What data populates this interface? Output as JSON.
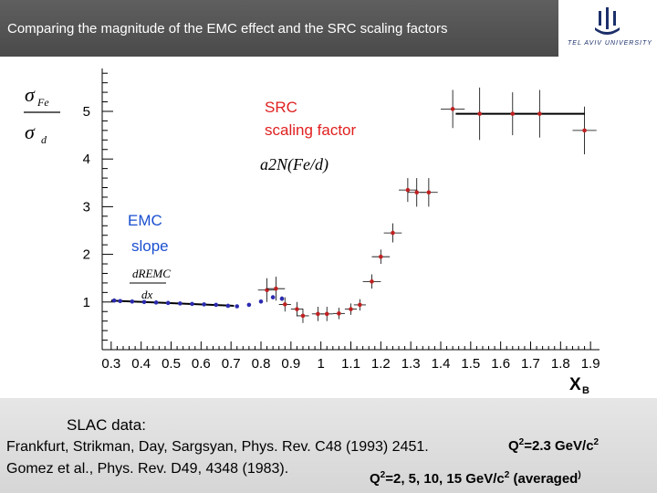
{
  "header": {
    "title": "Comparing the magnitude of the EMC effect and the SRC scaling factors",
    "logo_text": "TEL AVIV UNIVERSITY"
  },
  "chart_data": {
    "type": "scatter",
    "xlabel": "X_B",
    "ylabel": "σ_Fe / σ_d",
    "xlim": [
      0.27,
      1.93
    ],
    "ylim": [
      0.0,
      5.9
    ],
    "x_ticks": [
      "0.3",
      "0.4",
      "0.5",
      "0.6",
      "0.7",
      "0.8",
      "0.9",
      "1",
      "1.1",
      "1.2",
      "1.3",
      "1.4",
      "1.5",
      "1.6",
      "1.7",
      "1.8",
      "1.9"
    ],
    "y_ticks": [
      "1",
      "2",
      "3",
      "4",
      "5"
    ],
    "grid": false,
    "annotations": {
      "src_label_line1": "SRC",
      "src_label_line2": "scaling factor",
      "src_formula": "a2N(Fe/d)",
      "emc_label_line1": "EMC",
      "emc_label_line2": "slope",
      "emc_formula_num": "dREMC",
      "emc_formula_den": "dx"
    },
    "series": [
      {
        "color": "#2b2bb0",
        "x": [
          0.31,
          0.33,
          0.37,
          0.41,
          0.45,
          0.49,
          0.53,
          0.57,
          0.61,
          0.65,
          0.69,
          0.72,
          0.76,
          0.8,
          0.84,
          0.87
        ],
        "y": [
          1.03,
          1.02,
          1.01,
          1.0,
          0.99,
          0.98,
          0.97,
          0.96,
          0.95,
          0.94,
          0.92,
          0.91,
          0.94,
          1.01,
          1.1,
          1.07
        ],
        "yerr": [
          0,
          0,
          0,
          0,
          0,
          0,
          0,
          0,
          0,
          0,
          0,
          0,
          0,
          0,
          0,
          0.05
        ]
      },
      {
        "color": "#c02020",
        "x": [
          0.82,
          0.85,
          0.88,
          0.92,
          0.94,
          0.99,
          1.02,
          1.06,
          1.1,
          1.13,
          1.17,
          1.2,
          1.24,
          1.29,
          1.32,
          1.36,
          1.44,
          1.53,
          1.64,
          1.73,
          1.88
        ],
        "y": [
          1.25,
          1.28,
          0.95,
          0.85,
          0.71,
          0.75,
          0.75,
          0.76,
          0.85,
          0.94,
          1.43,
          1.95,
          2.45,
          3.35,
          3.3,
          3.3,
          5.05,
          4.95,
          4.95,
          4.95,
          4.6
        ],
        "yerr": [
          0.25,
          0.25,
          0.15,
          0.15,
          0.15,
          0.15,
          0.15,
          0.12,
          0.12,
          0.12,
          0.15,
          0.15,
          0.2,
          0.25,
          0.3,
          0.3,
          0.4,
          0.55,
          0.45,
          0.5,
          0.5
        ],
        "xerr": [
          0.03,
          0.03,
          0.02,
          0.02,
          0.02,
          0.02,
          0.02,
          0.02,
          0.02,
          0.02,
          0.03,
          0.03,
          0.03,
          0.03,
          0.03,
          0.03,
          0.04,
          0.04,
          0.04,
          0.04,
          0.04
        ]
      }
    ],
    "fit_lines": [
      {
        "name": "EMC slope",
        "x": [
          0.3,
          0.71
        ],
        "y": [
          1.03,
          0.92
        ]
      },
      {
        "name": "SRC scaling factor",
        "x": [
          1.45,
          1.88
        ],
        "y": [
          4.95,
          4.95
        ]
      }
    ]
  },
  "footer": {
    "slac_label": "SLAC data:",
    "ref1": "Frankfurt, Strikman, Day, Sargsyan,  Phys. Rev. C48 (1993) 2451.",
    "ref2": "Gomez et al.,  Phys. Rev. D49, 4348 (1983).",
    "q2_first": "Q",
    "q2_first_rest": "=2.3 GeV/c",
    "q2_second": "Q",
    "q2_second_rest": "=2, 5, 10, 15 GeV/c",
    "q2_second_tail": " (averaged",
    "q2_second_paren": ")",
    "sup2": "2"
  },
  "colors": {
    "title_bg": "#4f4f4f",
    "src_label": "#e02020",
    "emc_label": "#1a4fd0",
    "footer_bg": "#dedede"
  }
}
